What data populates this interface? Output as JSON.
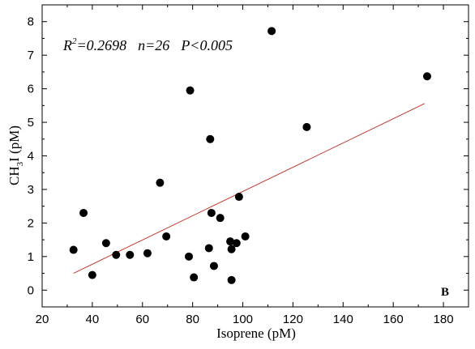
{
  "chart_data": {
    "type": "scatter",
    "xlabel": "Isoprene (pM)",
    "ylabel": "CH3I (pM)",
    "ylabel_parts": {
      "main": "CH",
      "sub": "3",
      "rest": "I (pM)"
    },
    "xlim": [
      20,
      190
    ],
    "ylim": [
      -0.5,
      8.5
    ],
    "xticks": [
      20,
      40,
      60,
      80,
      100,
      120,
      140,
      160,
      180
    ],
    "yticks": [
      0,
      1,
      2,
      3,
      4,
      5,
      6,
      7,
      8
    ],
    "grid": false,
    "annotation": {
      "r_label": "R",
      "r_sup": "2",
      "r_value": "=0.2698",
      "n": "n=26",
      "p": "P<0.005"
    },
    "panel_label": "B",
    "marker_color": "#000000",
    "fit_color": "#c0392b",
    "points": [
      [
        32.5,
        1.2
      ],
      [
        36.5,
        2.3
      ],
      [
        40,
        0.45
      ],
      [
        45.5,
        1.4
      ],
      [
        49.5,
        1.05
      ],
      [
        55,
        1.05
      ],
      [
        62,
        1.1
      ],
      [
        67,
        3.2
      ],
      [
        69.5,
        1.6
      ],
      [
        78.5,
        1.0
      ],
      [
        79,
        5.95
      ],
      [
        80.5,
        0.38
      ],
      [
        86.5,
        1.25
      ],
      [
        87,
        4.5
      ],
      [
        87.5,
        2.3
      ],
      [
        88.5,
        0.72
      ],
      [
        91,
        2.15
      ],
      [
        95,
        1.45
      ],
      [
        95.5,
        1.22
      ],
      [
        95.5,
        0.3
      ],
      [
        97.5,
        1.4
      ],
      [
        98.5,
        2.78
      ],
      [
        101,
        1.6
      ],
      [
        111.5,
        7.72
      ],
      [
        125.5,
        4.86
      ],
      [
        173.5,
        6.37
      ]
    ],
    "fit_line": {
      "x": [
        32.5,
        172.5
      ],
      "y": [
        0.5,
        5.56
      ]
    }
  }
}
